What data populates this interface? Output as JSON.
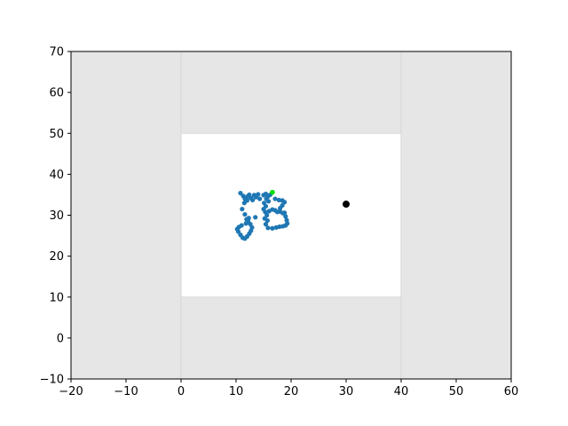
{
  "chart_data": {
    "type": "scatter",
    "title": "",
    "xlabel": "",
    "ylabel": "",
    "xlim": [
      -20,
      60
    ],
    "ylim": [
      -10,
      70
    ],
    "xticks": [
      -20,
      -10,
      0,
      10,
      20,
      30,
      40,
      50,
      60
    ],
    "yticks": [
      -10,
      0,
      10,
      20,
      30,
      40,
      50,
      60,
      70
    ],
    "grid": false,
    "colors": {
      "outside_region": "#e6e6e6",
      "free_region": "#ffffff",
      "region_border": "#d9d9d9",
      "points": "#1f77b4",
      "highlight_point": "#00dd00",
      "target_point": "#000000"
    },
    "regions": [
      {
        "name": "free-area",
        "x": [
          0,
          40
        ],
        "y": [
          10,
          50
        ]
      }
    ],
    "divider_lines_x": [
      0,
      40
    ],
    "series": [
      {
        "values": [
          [
            10.8,
            35.4
          ],
          [
            11.3,
            34.7
          ],
          [
            11.6,
            34.0
          ],
          [
            12.0,
            33.6
          ],
          [
            12.1,
            34.6
          ],
          [
            12.4,
            35.0
          ],
          [
            12.7,
            34.2
          ],
          [
            13.0,
            33.7
          ],
          [
            13.3,
            34.9
          ],
          [
            13.6,
            34.4
          ],
          [
            14.0,
            35.1
          ],
          [
            14.3,
            34.0
          ],
          [
            11.5,
            33.0
          ],
          [
            11.1,
            31.5
          ],
          [
            11.6,
            30.2
          ],
          [
            11.9,
            29.0
          ],
          [
            12.2,
            28.5
          ],
          [
            12.6,
            27.8
          ],
          [
            12.9,
            27.0
          ],
          [
            12.7,
            26.2
          ],
          [
            12.4,
            25.5
          ],
          [
            12.0,
            24.8
          ],
          [
            11.6,
            24.3
          ],
          [
            11.2,
            24.5
          ],
          [
            10.8,
            25.2
          ],
          [
            10.4,
            26.0
          ],
          [
            10.2,
            26.6
          ],
          [
            10.5,
            27.1
          ],
          [
            11.0,
            27.5
          ],
          [
            11.8,
            28.0
          ],
          [
            12.3,
            29.3
          ],
          [
            13.5,
            29.5
          ],
          [
            15.0,
            34.9
          ],
          [
            15.4,
            35.2
          ],
          [
            15.8,
            34.6
          ],
          [
            16.2,
            35.0
          ],
          [
            15.5,
            34.0
          ],
          [
            15.9,
            33.4
          ],
          [
            15.1,
            33.0
          ],
          [
            15.4,
            32.2
          ],
          [
            15.0,
            31.5
          ],
          [
            15.3,
            30.8
          ],
          [
            15.6,
            30.0
          ],
          [
            15.2,
            29.2
          ],
          [
            15.7,
            28.7
          ],
          [
            16.0,
            31.0
          ],
          [
            16.6,
            31.4
          ],
          [
            17.1,
            31.2
          ],
          [
            17.5,
            30.8
          ],
          [
            18.0,
            30.9
          ],
          [
            18.5,
            30.5
          ],
          [
            17.1,
            34.0
          ],
          [
            17.8,
            33.7
          ],
          [
            18.4,
            33.6
          ],
          [
            18.8,
            33.2
          ],
          [
            18.4,
            32.4
          ],
          [
            18.0,
            31.7
          ],
          [
            18.8,
            30.6
          ],
          [
            19.0,
            29.7
          ],
          [
            19.2,
            28.8
          ],
          [
            19.3,
            28.0
          ],
          [
            19.0,
            27.5
          ],
          [
            18.5,
            27.3
          ],
          [
            17.9,
            27.2
          ],
          [
            17.3,
            27.0
          ],
          [
            16.6,
            26.8
          ],
          [
            15.8,
            26.9
          ],
          [
            15.4,
            27.8
          ]
        ]
      }
    ],
    "highlight_point": [
      16.6,
      35.6
    ],
    "target_point": [
      30.0,
      32.7
    ]
  }
}
